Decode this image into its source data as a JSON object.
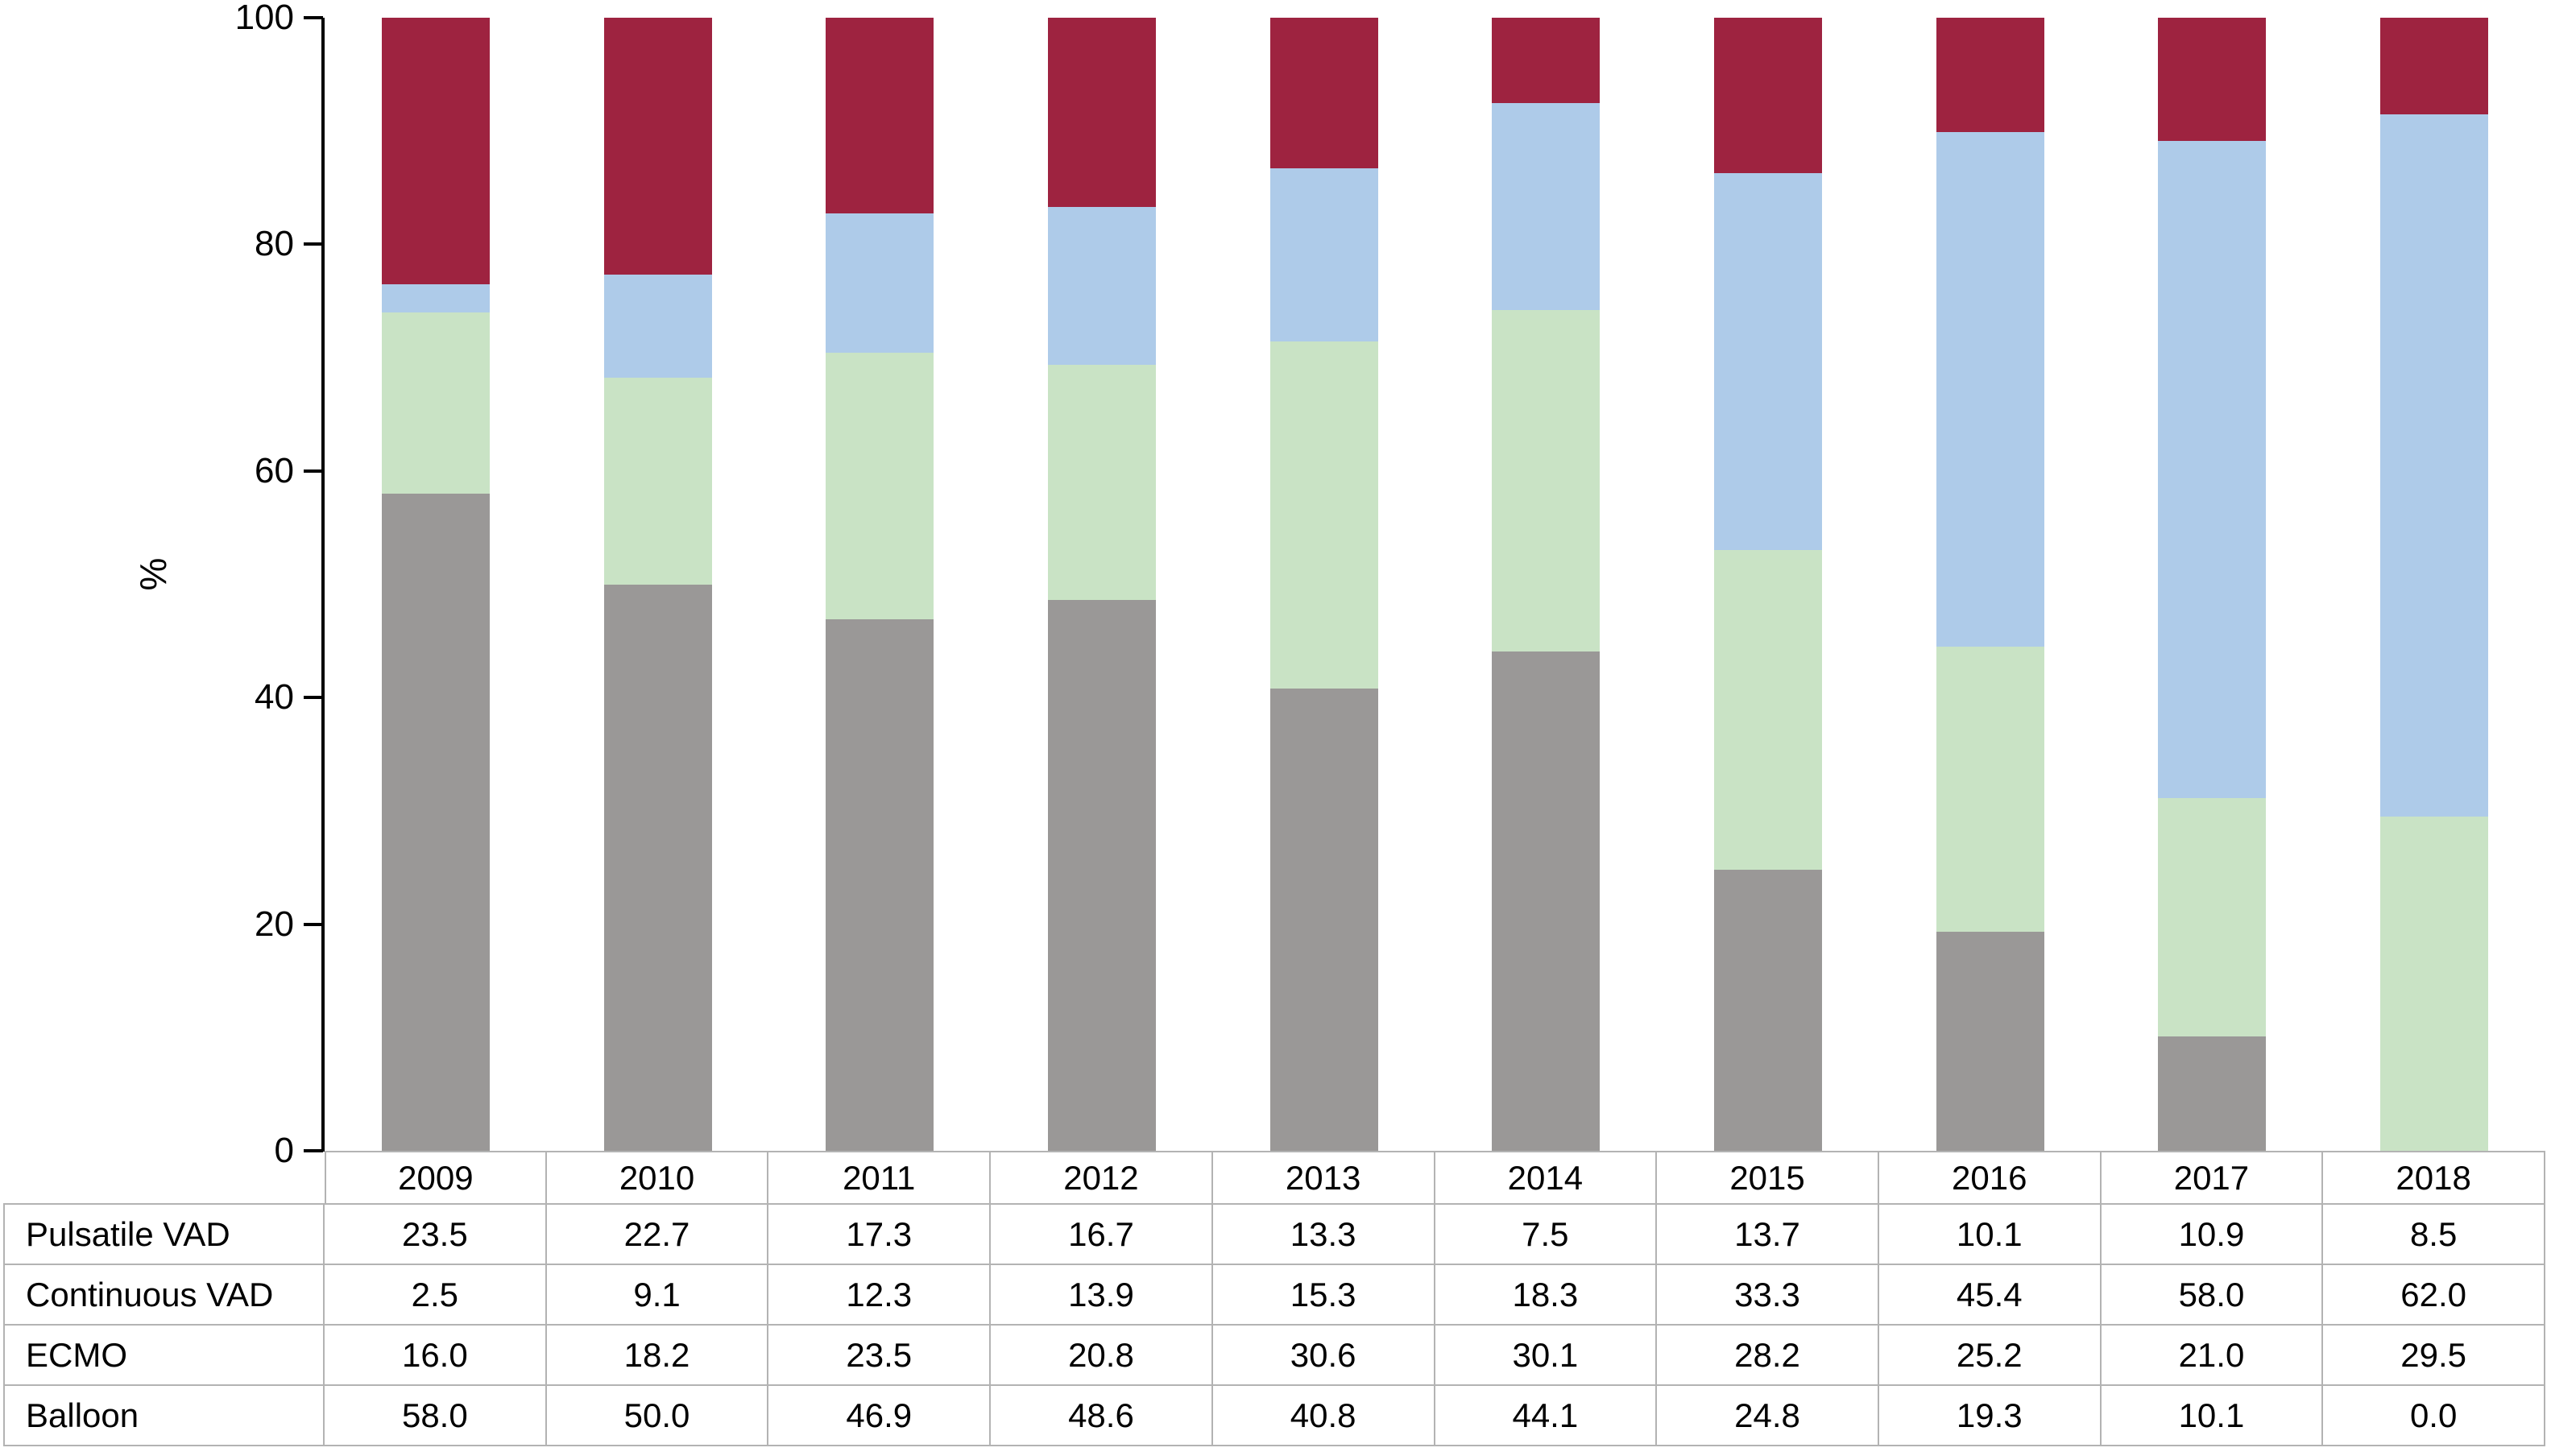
{
  "chart_data": {
    "type": "bar",
    "stacked": true,
    "title": "",
    "xlabel": "",
    "ylabel": "%",
    "ylim": [
      0,
      100
    ],
    "yticks": [
      0,
      20,
      40,
      60,
      80,
      100
    ],
    "grid": false,
    "legend_position": "none (series identified in data table below chart)",
    "categories": [
      "2009",
      "2010",
      "2011",
      "2012",
      "2013",
      "2014",
      "2015",
      "2016",
      "2017",
      "2018"
    ],
    "series": [
      {
        "name": "Pulsatile VAD",
        "color": "#9E2340",
        "values": [
          23.5,
          22.7,
          17.3,
          16.7,
          13.3,
          7.5,
          13.7,
          10.1,
          10.9,
          8.5
        ]
      },
      {
        "name": "Continuous VAD",
        "color": "#AECBE9",
        "values": [
          2.5,
          9.1,
          12.3,
          13.9,
          15.3,
          18.3,
          33.3,
          45.4,
          58.0,
          62.0
        ]
      },
      {
        "name": "ECMO",
        "color": "#C9E3C5",
        "values": [
          16.0,
          18.2,
          23.5,
          20.8,
          30.6,
          30.1,
          28.2,
          25.2,
          21.0,
          29.5
        ]
      },
      {
        "name": "Balloon",
        "color": "#9A9897",
        "values": [
          58.0,
          50.0,
          46.9,
          48.6,
          40.8,
          44.1,
          24.8,
          19.3,
          10.1,
          0.0
        ]
      }
    ],
    "stack_order_bottom_to_top": [
      "Balloon",
      "ECMO",
      "Continuous VAD",
      "Pulsatile VAD"
    ],
    "value_format": "one_decimal"
  }
}
